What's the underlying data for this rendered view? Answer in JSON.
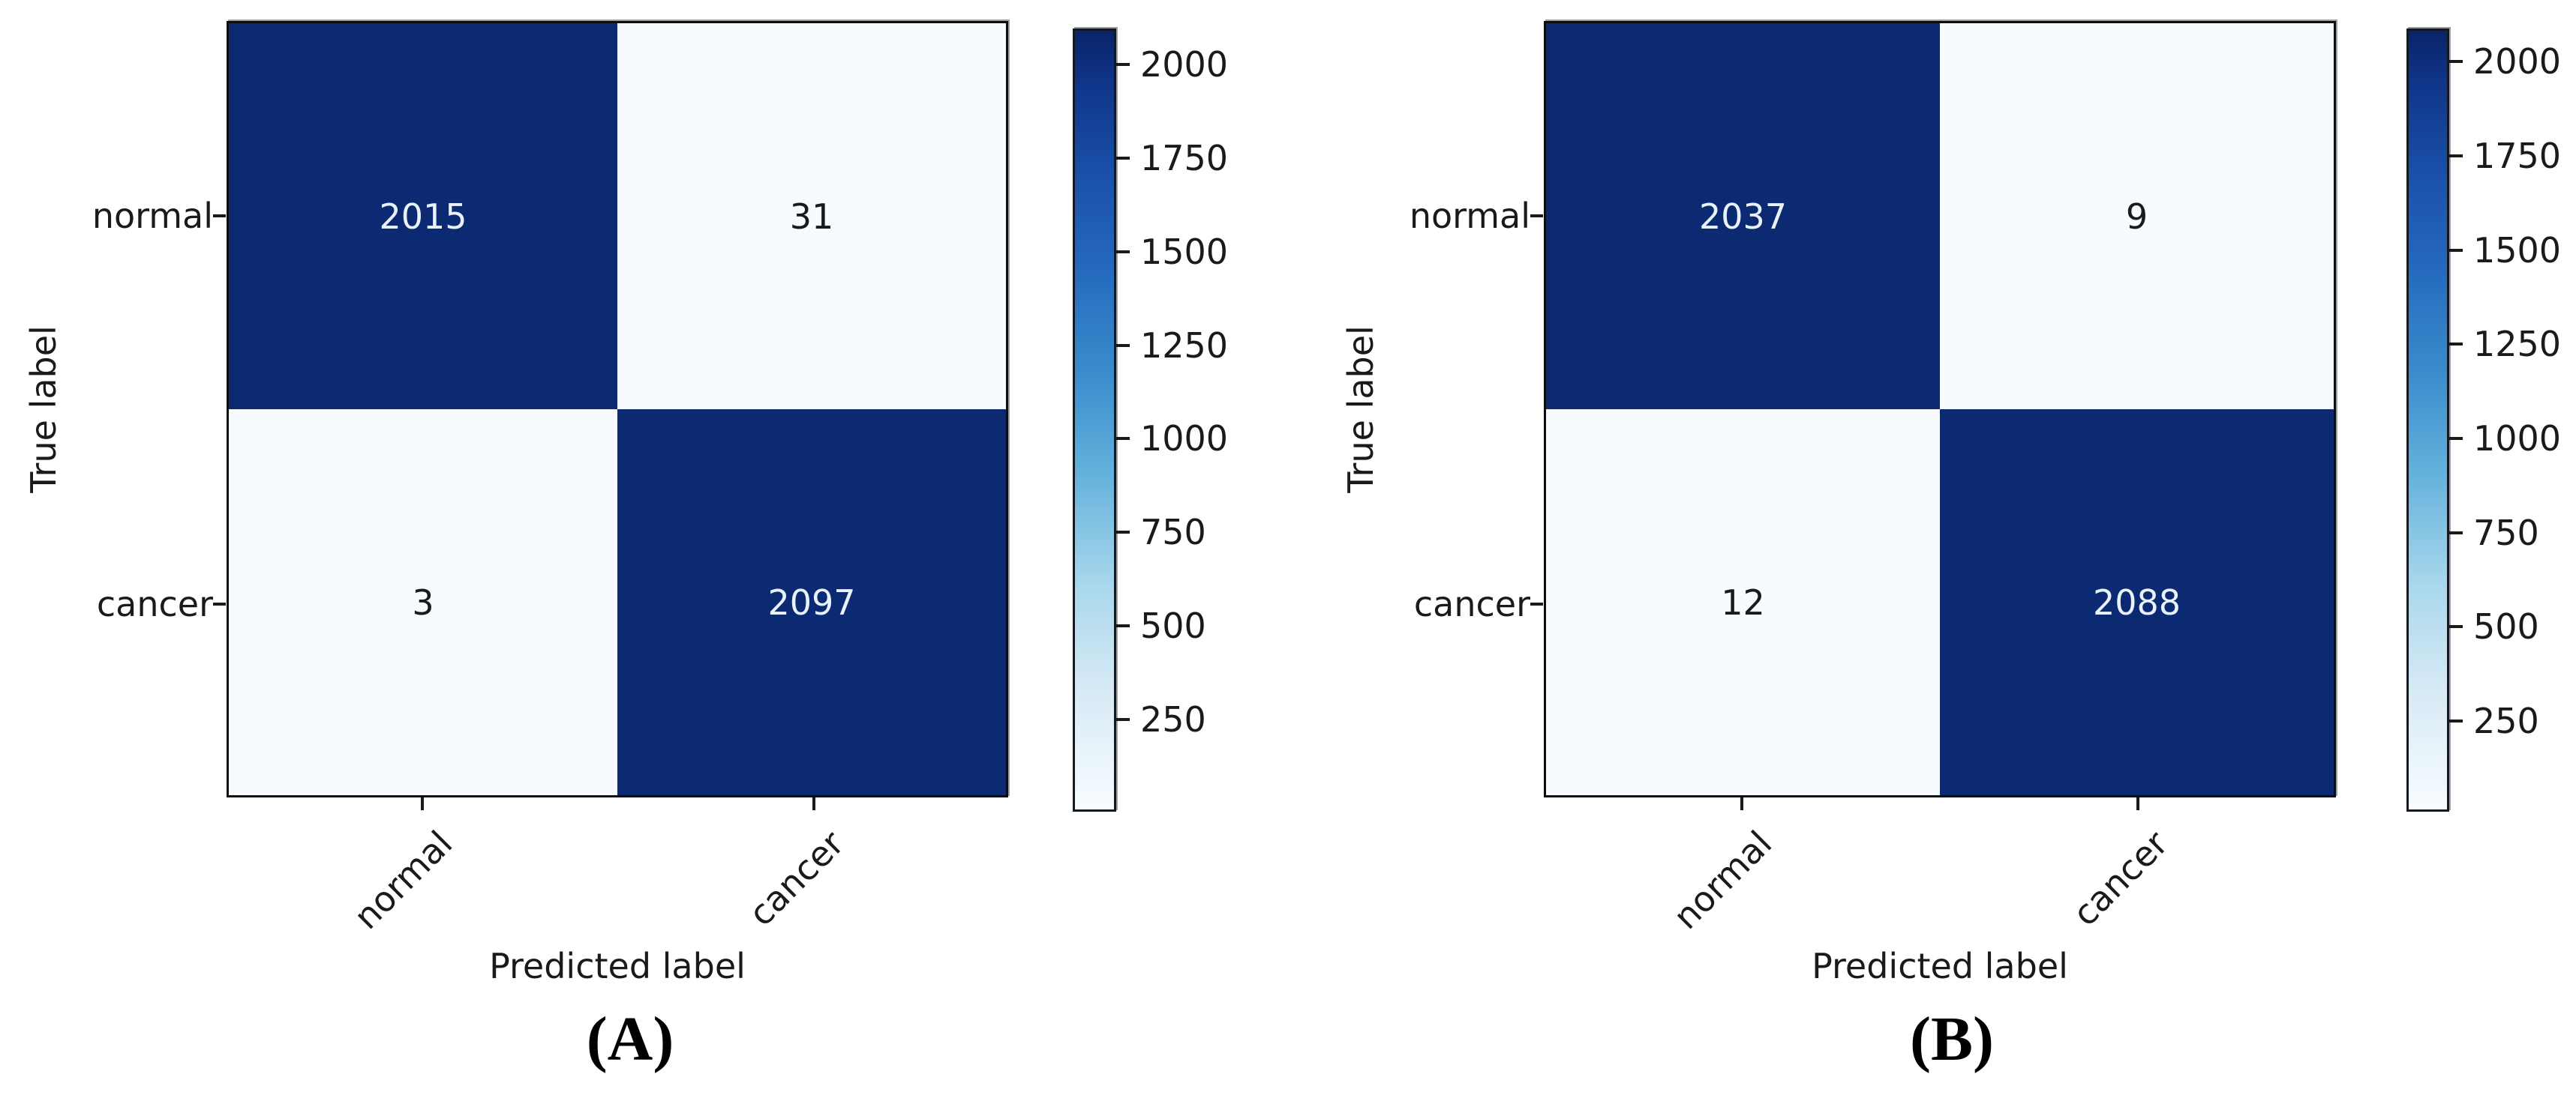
{
  "figure": {
    "type": "confusion-matrix-comparison",
    "background": "#ffffff"
  },
  "colors": {
    "dark_cell": "#0c2a72",
    "light_cell": "#f7fbff",
    "dark_cell_text": "#e9f1fb",
    "light_cell_text": "#1a1a1a",
    "axis": "#1a1a1a",
    "colormap_name": "Blues",
    "colormap_top": "#0a2466",
    "colormap_bottom": "#f8fcff"
  },
  "chart_data": [
    {
      "type": "heatmap",
      "panel": "A",
      "caption": "(A)",
      "xlabel": "Predicted label",
      "ylabel": "True label",
      "x_categories": [
        "normal",
        "cancer"
      ],
      "y_categories": [
        "normal",
        "cancer"
      ],
      "matrix": [
        [
          2015,
          31
        ],
        [
          3,
          2097
        ]
      ],
      "colormap": "Blues",
      "zmin": 3,
      "zmax": 2097,
      "colorbar_ticks": [
        2000,
        1750,
        1500,
        1250,
        1000,
        750,
        500,
        250
      ],
      "legend_position": "right",
      "grid": false
    },
    {
      "type": "heatmap",
      "panel": "B",
      "caption": "(B)",
      "xlabel": "Predicted label",
      "ylabel": "True label",
      "x_categories": [
        "normal",
        "cancer"
      ],
      "y_categories": [
        "normal",
        "cancer"
      ],
      "matrix": [
        [
          2037,
          9
        ],
        [
          12,
          2088
        ]
      ],
      "colormap": "Blues",
      "zmin": 9,
      "zmax": 2088,
      "colorbar_ticks": [
        2000,
        1750,
        1500,
        1250,
        1000,
        750,
        500,
        250
      ],
      "legend_position": "right",
      "grid": false
    }
  ]
}
